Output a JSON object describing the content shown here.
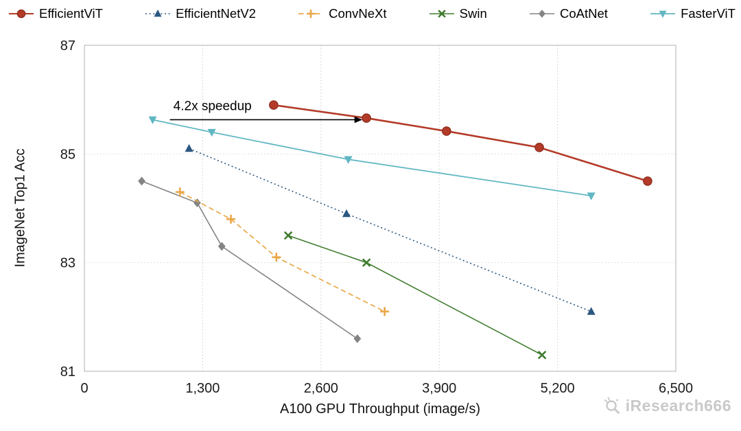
{
  "figure": {
    "watermark": "iResearch666"
  },
  "chart_data": {
    "type": "line",
    "title": "",
    "xlabel": "A100 GPU Throughput (image/s)",
    "ylabel": "ImageNet Top1 Acc",
    "xlim": [
      0,
      6500
    ],
    "ylim": [
      81,
      87
    ],
    "xticks": [
      0,
      1300,
      2600,
      3900,
      5200,
      6500
    ],
    "xtick_labels": [
      "0",
      "1,300",
      "2,600",
      "3,900",
      "5,200",
      "6,500"
    ],
    "yticks": [
      87,
      85,
      83,
      81
    ],
    "ytick_labels": [
      "87",
      "85",
      "83",
      "81"
    ],
    "grid": "dotted",
    "legend_position": "top",
    "annotation": {
      "text": "4.2x speedup",
      "arrow": {
        "x_from": 940,
        "x_to": 3055,
        "y": 85.63
      }
    },
    "series": [
      {
        "name": "EfficientViT",
        "color": "#b33b28",
        "marker_edge": "#8a2b1d",
        "marker": "circle",
        "line_style": "solid",
        "line_width": 2.6,
        "points": [
          [
            2080,
            85.9
          ],
          [
            3100,
            85.66
          ],
          [
            3980,
            85.42
          ],
          [
            5000,
            85.12
          ],
          [
            6190,
            84.5
          ]
        ]
      },
      {
        "name": "EfficientNetV2",
        "color": "#2b5881",
        "marker": "triangle-up",
        "line_style": "dotted",
        "line_width": 1.6,
        "points": [
          [
            1150,
            85.1
          ],
          [
            2880,
            83.9
          ],
          [
            5570,
            82.1
          ]
        ]
      },
      {
        "name": "ConvNeXt",
        "color": "#e9a748",
        "marker": "plus",
        "line_style": "dashed",
        "line_width": 1.7,
        "points": [
          [
            1050,
            84.3
          ],
          [
            1610,
            83.8
          ],
          [
            2110,
            83.1
          ],
          [
            3300,
            82.1
          ]
        ]
      },
      {
        "name": "Swin",
        "color": "#3f7c2e",
        "marker": "x",
        "line_style": "solid",
        "line_width": 1.6,
        "points": [
          [
            2240,
            83.5
          ],
          [
            3100,
            83.0
          ],
          [
            5030,
            81.3
          ]
        ]
      },
      {
        "name": "CoAtNet",
        "color": "#848484",
        "marker": "diamond",
        "line_style": "solid",
        "line_width": 1.6,
        "points": [
          [
            630,
            84.5
          ],
          [
            1240,
            84.1
          ],
          [
            1510,
            83.3
          ],
          [
            3000,
            81.6
          ]
        ]
      },
      {
        "name": "FasterViT",
        "color": "#60b7c3",
        "marker": "triangle-down",
        "line_style": "solid",
        "line_width": 1.8,
        "points": [
          [
            750,
            85.63
          ],
          [
            1400,
            85.4
          ],
          [
            2900,
            84.9
          ],
          [
            5570,
            84.23
          ]
        ]
      }
    ]
  }
}
